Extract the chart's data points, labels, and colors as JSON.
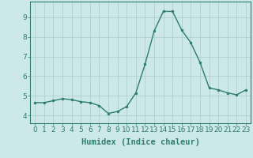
{
  "x": [
    0,
    1,
    2,
    3,
    4,
    5,
    6,
    7,
    8,
    9,
    10,
    11,
    12,
    13,
    14,
    15,
    16,
    17,
    18,
    19,
    20,
    21,
    22,
    23
  ],
  "y": [
    4.65,
    4.65,
    4.75,
    4.85,
    4.8,
    4.7,
    4.65,
    4.5,
    4.1,
    4.2,
    4.45,
    5.15,
    6.6,
    8.3,
    9.3,
    9.3,
    8.35,
    7.7,
    6.7,
    5.4,
    5.3,
    5.15,
    5.05,
    5.3
  ],
  "line_color": "#2e7d6e",
  "marker": "o",
  "marker_size": 2.0,
  "bg_color": "#cce8e8",
  "grid_color": "#aacccc",
  "xlabel": "Humidex (Indice chaleur)",
  "ylim": [
    3.6,
    9.8
  ],
  "xlim": [
    -0.5,
    23.5
  ],
  "yticks": [
    4,
    5,
    6,
    7,
    8,
    9
  ],
  "xticks": [
    0,
    1,
    2,
    3,
    4,
    5,
    6,
    7,
    8,
    9,
    10,
    11,
    12,
    13,
    14,
    15,
    16,
    17,
    18,
    19,
    20,
    21,
    22,
    23
  ],
  "spine_color": "#2e7d6e",
  "tick_color": "#2e7d6e",
  "label_color": "#2e7d6e",
  "tick_fontsize": 6.5,
  "xlabel_fontsize": 7.5
}
